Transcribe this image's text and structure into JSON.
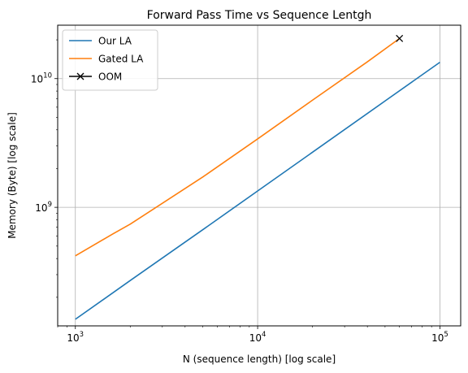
{
  "chart_data": {
    "type": "line",
    "title": "Forward Pass Time vs Sequence Lentgh",
    "xlabel": "N (sequence length) [log scale]",
    "ylabel": "Memory (Byte) [log scale]",
    "xscale": "log",
    "yscale": "log",
    "xlim": [
      800,
      130000
    ],
    "ylim": [
      120000000,
      26000000000
    ],
    "grid": true,
    "legend_position": "top-left",
    "x_ticks": [
      {
        "value": 1000,
        "base": "10",
        "exp": "3"
      },
      {
        "value": 10000,
        "base": "10",
        "exp": "4"
      },
      {
        "value": 100000,
        "base": "10",
        "exp": "5"
      }
    ],
    "y_ticks": [
      {
        "value": 1000000000,
        "base": "10",
        "exp": "9"
      },
      {
        "value": 10000000000,
        "base": "10",
        "exp": "10"
      }
    ],
    "series": [
      {
        "name": "Our LA",
        "color": "#1f77b4",
        "marker": "none",
        "x": [
          1000,
          2000,
          5000,
          10000,
          20000,
          50000,
          100000
        ],
        "y": [
          135000000,
          270000000,
          670000000,
          1340000000,
          2680000000,
          6700000000,
          13400000000
        ]
      },
      {
        "name": "Gated LA",
        "color": "#ff7f0e",
        "marker": "none",
        "x": [
          1000,
          1600,
          2000,
          5000,
          10000,
          20000,
          40000,
          60000
        ],
        "y": [
          420000000,
          620000000,
          740000000,
          1720000000,
          3400000000,
          6800000000,
          13500000000,
          20500000000
        ]
      },
      {
        "name": "OOM",
        "color": "#000000",
        "marker": "x",
        "line": "none",
        "x": [
          60000
        ],
        "y": [
          20500000000
        ]
      }
    ]
  }
}
